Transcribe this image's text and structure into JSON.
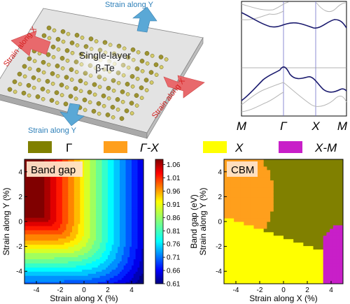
{
  "illustration": {
    "label_line1": "Single-layer",
    "label_line2": "β-Te",
    "arrow_labels": {
      "x_left": "Strain along X",
      "x_right": "Strain along X",
      "y_top": "Strain along Y",
      "y_bottom": "Strain along Y"
    },
    "colors": {
      "x_arrow": "#e8696c",
      "y_arrow": "#5aa8d6",
      "x_text": "#d42020",
      "y_text": "#2d7fb8"
    }
  },
  "band_structure": {
    "k_labels": [
      "M",
      "Γ",
      "X",
      "M"
    ],
    "line_color": "#1a1a6e",
    "faint_color": "#b5b5b5"
  },
  "legend": {
    "items": [
      {
        "label": "Γ",
        "color": "#808000"
      },
      {
        "label": "Γ-X",
        "color": "#ff9f1c"
      },
      {
        "label": "X",
        "color": "#ffff00"
      },
      {
        "label": "X-M",
        "color": "#c81fc8"
      }
    ]
  },
  "chart_data": [
    {
      "type": "heatmap",
      "title": "Band gap",
      "xlabel": "Strain along X (%)",
      "ylabel": "Strain along Y (%)",
      "xlim": [
        -5,
        5
      ],
      "ylim": [
        -5,
        5
      ],
      "xticks": [
        -4,
        -2,
        0,
        2,
        4
      ],
      "yticks": [
        -4,
        -2,
        0,
        2,
        4
      ],
      "colorbar": {
        "label": "Band gap (eV)",
        "ticks": [
          1.06,
          1.01,
          0.96,
          0.91,
          0.86,
          0.81,
          0.76,
          0.71,
          0.66,
          0.61
        ],
        "range": [
          0.61,
          1.08
        ],
        "colormap": "jet"
      }
    },
    {
      "type": "heatmap",
      "title": "CBM",
      "xlabel": "Strain along X (%)",
      "ylabel": "Strain along Y (%)",
      "xlim": [
        -5,
        5
      ],
      "ylim": [
        -5,
        5
      ],
      "xticks": [
        -4,
        -2,
        0,
        2,
        4
      ],
      "yticks": [
        -4,
        -2,
        0,
        2,
        4
      ],
      "regions": [
        "Γ",
        "Γ-X",
        "X",
        "X-M"
      ]
    }
  ]
}
